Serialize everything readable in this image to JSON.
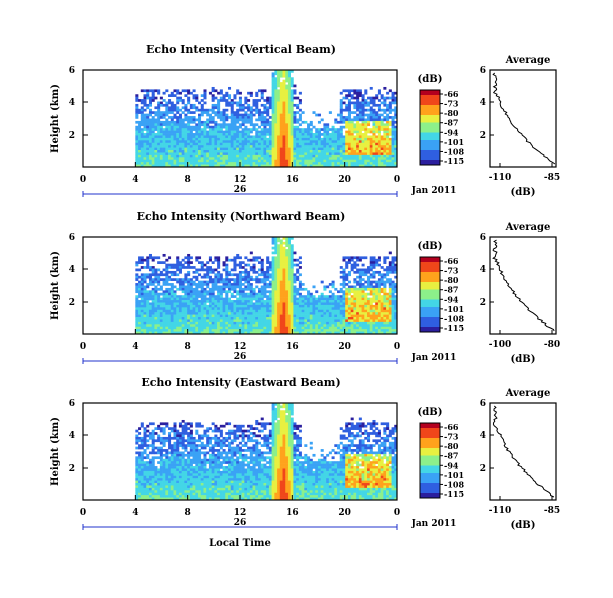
{
  "chart_data": [
    {
      "type": "heatmap",
      "title": "Echo Intensity (Vertical Beam)",
      "ylabel": "Height (km)",
      "x_ticks": [
        "0",
        "4",
        "8",
        "12",
        "16",
        "20",
        "0"
      ],
      "y_ticks": [
        "6",
        "4",
        "2"
      ],
      "date_label": "26",
      "month_label": "Jan 2011",
      "colorbar": {
        "unit": "(dB)",
        "ticks": [
          "-66",
          "-73",
          "-80",
          "-87",
          "-94",
          "-101",
          "-108",
          "-115"
        ]
      },
      "profile": {
        "title": "Average",
        "xlabel": "(dB)",
        "x_ticks": [
          "-110",
          "-85"
        ],
        "y_ticks": [
          "6",
          "4",
          "2"
        ]
      }
    },
    {
      "type": "heatmap",
      "title": "Echo Intensity (Northward Beam)",
      "ylabel": "Height (km)",
      "x_ticks": [
        "0",
        "4",
        "8",
        "12",
        "16",
        "20",
        "0"
      ],
      "y_ticks": [
        "6",
        "4",
        "2"
      ],
      "date_label": "26",
      "month_label": "Jan 2011",
      "colorbar": {
        "unit": "(dB)",
        "ticks": [
          "-66",
          "-73",
          "-80",
          "-87",
          "-94",
          "-101",
          "-108",
          "-115"
        ]
      },
      "profile": {
        "title": "Average",
        "xlabel": "(dB)",
        "x_ticks": [
          "-100",
          "-80"
        ],
        "y_ticks": [
          "6",
          "4",
          "2"
        ]
      }
    },
    {
      "type": "heatmap",
      "title": "Echo Intensity (Eastward Beam)",
      "ylabel": "Height (km)",
      "x_ticks": [
        "0",
        "4",
        "8",
        "12",
        "16",
        "20",
        "0"
      ],
      "y_ticks": [
        "6",
        "4",
        "2"
      ],
      "date_label": "26",
      "month_label": "Jan 2011",
      "xlabel": "Local Time",
      "colorbar": {
        "unit": "(dB)",
        "ticks": [
          "-66",
          "-73",
          "-80",
          "-87",
          "-94",
          "-101",
          "-108",
          "-115"
        ]
      },
      "profile": {
        "title": "Average",
        "xlabel": "(dB)",
        "x_ticks": [
          "-110",
          "-85"
        ],
        "y_ticks": [
          "6",
          "4",
          "2"
        ]
      }
    }
  ],
  "colors": {
    "scale": [
      "#2b1f9e",
      "#2f5fe0",
      "#3aa2f5",
      "#43d6e6",
      "#8cf08a",
      "#e8f040",
      "#ffa21c",
      "#f0461a",
      "#b3001e"
    ],
    "axis": "#000000",
    "background": "#ffffff"
  }
}
